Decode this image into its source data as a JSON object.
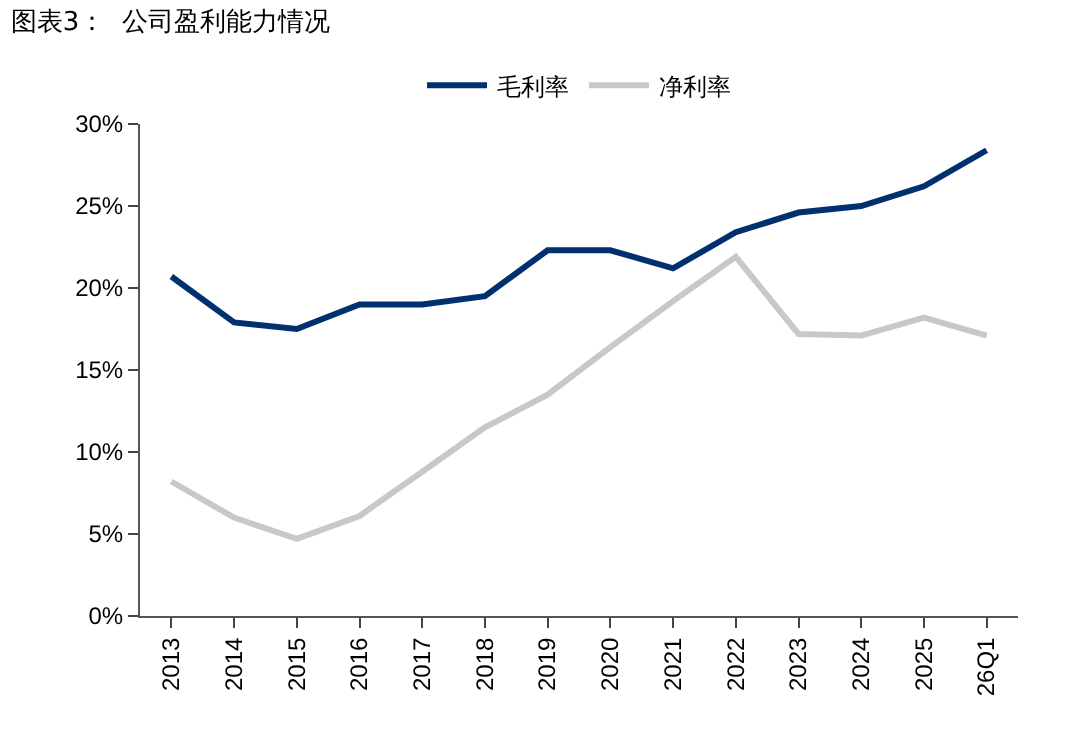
{
  "chart_data": {
    "type": "line",
    "title": "图表3：  公司盈利能力情况",
    "categories": [
      "2013",
      "2014",
      "2015",
      "2016",
      "2017",
      "2018",
      "2019",
      "2020",
      "2021",
      "2022",
      "2023",
      "2024",
      "2025",
      "26Q1"
    ],
    "series": [
      {
        "name": "毛利率",
        "color": "#00306e",
        "values": [
          20.7,
          17.9,
          17.5,
          19.0,
          19.0,
          19.5,
          22.3,
          22.3,
          21.2,
          23.4,
          24.6,
          25.0,
          26.2,
          28.4
        ]
      },
      {
        "name": "净利率",
        "color": "#c8c8c8",
        "values": [
          8.2,
          6.0,
          4.7,
          6.1,
          8.8,
          11.5,
          13.5,
          16.4,
          19.2,
          21.9,
          17.2,
          17.1,
          18.2,
          17.1
        ]
      }
    ],
    "ylim": [
      0,
      30
    ],
    "yticks": [
      {
        "value": 0,
        "label": "0%"
      },
      {
        "value": 5,
        "label": "5%"
      },
      {
        "value": 10,
        "label": "10%"
      },
      {
        "value": 15,
        "label": "15%"
      },
      {
        "value": 20,
        "label": "20%"
      },
      {
        "value": 25,
        "label": "25%"
      },
      {
        "value": 30,
        "label": "30%"
      }
    ],
    "grid": false,
    "legend": "top",
    "marker": "none",
    "line_style": "solid"
  }
}
